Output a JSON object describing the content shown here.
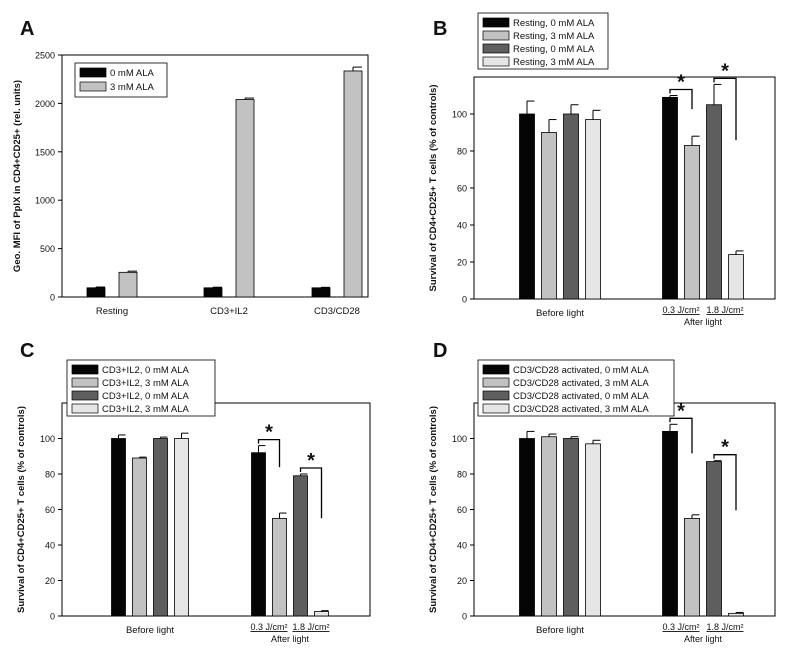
{
  "colors": {
    "black": "#050505",
    "light_gray": "#c2c2c2",
    "dark_gray": "#5e5e5e",
    "very_light_gray": "#e6e6e6",
    "axis": "#000000"
  },
  "chart_data": [
    {
      "panel_letter": "A",
      "type": "bar",
      "ylabel": "Geo. MFI of PpIX in CD4+CD25+ (rel. units)",
      "ylim": [
        0,
        2500
      ],
      "yticks": [
        0,
        500,
        1000,
        1500,
        2000,
        2500
      ],
      "categories": [
        "Resting",
        "CD3+IL2",
        "CD3/CD28"
      ],
      "legend_position": "top-left",
      "series": [
        {
          "name": "0 mM ALA",
          "color": "#050505",
          "values": [
            95,
            95,
            95
          ],
          "errors": [
            8,
            6,
            5
          ]
        },
        {
          "name": "3 mM ALA",
          "color": "#c2c2c2",
          "values": [
            255,
            2040,
            2335
          ],
          "errors": [
            12,
            15,
            40
          ]
        }
      ],
      "significance": []
    },
    {
      "panel_letter": "B",
      "type": "bar",
      "ylabel": "Survival of CD4+CD25+ T cells (% of controls)",
      "ylim": [
        0,
        120
      ],
      "yticks": [
        0,
        20,
        40,
        60,
        80,
        100
      ],
      "categories": [
        "Before light",
        "After light"
      ],
      "category_sublabels": {
        "After light": [
          "0.3 J/cm²",
          "1.8 J/cm²"
        ]
      },
      "legend_position": "top-left (outside)",
      "series": [
        {
          "name": "Resting, 0 mM ALA",
          "color": "#050505",
          "values": [
            100,
            109
          ],
          "errors": [
            7,
            1
          ]
        },
        {
          "name": "Resting, 3 mM ALA",
          "color": "#c2c2c2",
          "values": [
            90,
            83
          ],
          "errors": [
            7,
            5
          ]
        },
        {
          "name": "Resting, 0 mM ALA",
          "color": "#5e5e5e",
          "values": [
            100,
            105
          ],
          "errors": [
            5,
            11
          ]
        },
        {
          "name": "Resting, 3 mM ALA",
          "color": "#e6e6e6",
          "values": [
            97,
            24
          ],
          "errors": [
            5,
            2
          ]
        }
      ],
      "significance": [
        {
          "group": 1,
          "from_series": 0,
          "to_series": 1,
          "label": "*"
        },
        {
          "group": 1,
          "from_series": 2,
          "to_series": 3,
          "label": "*"
        }
      ]
    },
    {
      "panel_letter": "C",
      "type": "bar",
      "ylabel": "Survival of CD4+CD25+ T cells (% of controls)",
      "ylim": [
        0,
        120
      ],
      "yticks": [
        0,
        20,
        40,
        60,
        80,
        100
      ],
      "categories": [
        "Before light",
        "After light"
      ],
      "category_sublabels": {
        "After light": [
          "0.3 J/cm²",
          "1.8 J/cm²"
        ]
      },
      "legend_position": "top-left (outside)",
      "series": [
        {
          "name": "CD3+IL2, 0 mM ALA",
          "color": "#050505",
          "values": [
            100,
            92
          ],
          "errors": [
            2,
            4
          ]
        },
        {
          "name": "CD3+IL2, 3 mM ALA",
          "color": "#c2c2c2",
          "values": [
            89,
            55
          ],
          "errors": [
            0.5,
            3
          ]
        },
        {
          "name": "CD3+IL2, 0 mM ALA",
          "color": "#5e5e5e",
          "values": [
            100,
            79
          ],
          "errors": [
            0.8,
            1
          ]
        },
        {
          "name": "CD3+IL2, 3 mM ALA",
          "color": "#e6e6e6",
          "values": [
            100,
            2.5
          ],
          "errors": [
            3,
            0.5
          ]
        }
      ],
      "significance": [
        {
          "group": 1,
          "from_series": 0,
          "to_series": 1,
          "label": "*"
        },
        {
          "group": 1,
          "from_series": 2,
          "to_series": 3,
          "label": "*"
        }
      ]
    },
    {
      "panel_letter": "D",
      "type": "bar",
      "ylabel": "Survival of CD4+CD25+ T cells (% of controls)",
      "ylim": [
        0,
        120
      ],
      "yticks": [
        0,
        20,
        40,
        60,
        80,
        100
      ],
      "categories": [
        "Before light",
        "After light"
      ],
      "category_sublabels": {
        "After light": [
          "0.3 J/cm²",
          "1.8 J/cm²"
        ]
      },
      "legend_position": "top-left (outside)",
      "series": [
        {
          "name": "CD3/CD28 activated, 0 mM ALA",
          "color": "#050505",
          "values": [
            100,
            104
          ],
          "errors": [
            4,
            4
          ]
        },
        {
          "name": "CD3/CD28 activated, 3 mM ALA",
          "color": "#c2c2c2",
          "values": [
            101,
            55
          ],
          "errors": [
            1.5,
            2
          ]
        },
        {
          "name": "CD3/CD28 activated, 0 mM ALA",
          "color": "#5e5e5e",
          "values": [
            100,
            87
          ],
          "errors": [
            1,
            0.5
          ]
        },
        {
          "name": "CD3/CD28 activated, 3 mM ALA",
          "color": "#e6e6e6",
          "values": [
            97,
            1.5
          ],
          "errors": [
            2,
            0.5
          ]
        }
      ],
      "significance": [
        {
          "group": 1,
          "from_series": 0,
          "to_series": 1,
          "label": "*"
        },
        {
          "group": 1,
          "from_series": 2,
          "to_series": 3,
          "label": "*"
        }
      ]
    }
  ]
}
